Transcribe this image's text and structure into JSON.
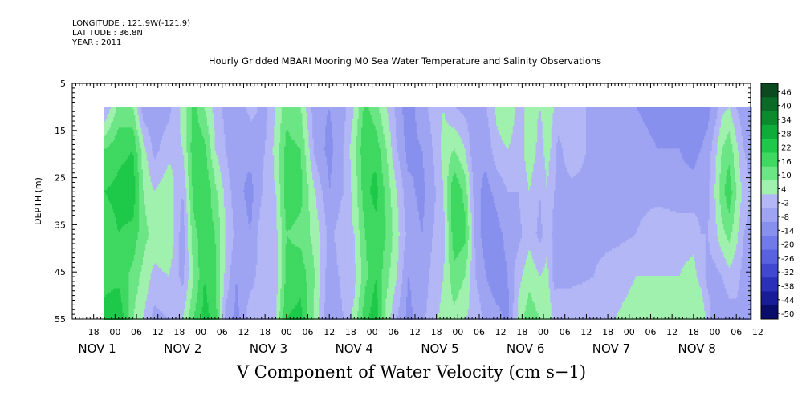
{
  "header": {
    "longitude": "LONGITUDE : 121.9W(-121.9)",
    "latitude": "LATITUDE : 36.8N",
    "year": "YEAR : 2011"
  },
  "chart_data": {
    "type": "heatmap",
    "title": "Hourly Gridded MBARI Mooring M0 Sea Water Temperature and Salinity Observations",
    "xlabel": "V Component of Water Velocity (cm s−1)",
    "ylabel": "DEPTH (m)",
    "y_reversed": true,
    "ylim": [
      5,
      55
    ],
    "yticks": [
      5,
      15,
      25,
      35,
      45,
      55
    ],
    "data_depth_range": [
      10,
      55
    ],
    "x_axis": {
      "hour_labels": [
        "18",
        "00",
        "06",
        "12",
        "18",
        "00",
        "06",
        "12",
        "18",
        "00",
        "06",
        "12",
        "18",
        "00",
        "06",
        "12",
        "18",
        "00",
        "06",
        "12",
        "18",
        "00",
        "06",
        "12",
        "18",
        "00",
        "06",
        "12",
        "18",
        "00",
        "06",
        "12"
      ],
      "day_labels": [
        "NOV 1",
        "NOV 2",
        "NOV 3",
        "NOV 4",
        "NOV 5",
        "NOV 6",
        "NOV 7",
        "NOV 8"
      ],
      "range_hours_from_oct31_12": [
        0,
        190
      ],
      "data_start_hours": 9
    },
    "colorbar": {
      "labels": [
        "46",
        "40",
        "34",
        "28",
        "22",
        "16",
        "10",
        "4",
        "-2",
        "-8",
        "-14",
        "-20",
        "-26",
        "-32",
        "-38",
        "-44",
        "-50"
      ],
      "colors": [
        "#0a4a1e",
        "#0b6a26",
        "#0c8a2e",
        "#10ac3a",
        "#1ec848",
        "#3fd860",
        "#6ce685",
        "#a0f0ae",
        "#b3b7f6",
        "#9ea4f2",
        "#8890ee",
        "#707ae8",
        "#5862de",
        "#4048cf",
        "#2a30b8",
        "#181c96",
        "#0a0c6a"
      ],
      "range": [
        -50,
        52
      ]
    },
    "day_columns": [
      {
        "hour": 9,
        "profile": [
          -3,
          16,
          22,
          18,
          20,
          24
        ]
      },
      {
        "hour": 13,
        "profile": [
          12,
          20,
          24,
          22,
          20,
          28
        ]
      },
      {
        "hour": 17,
        "profile": [
          10,
          22,
          26,
          20,
          14,
          10
        ]
      },
      {
        "hour": 20,
        "profile": [
          -6,
          6,
          10,
          12,
          8,
          4
        ]
      },
      {
        "hour": 23,
        "profile": [
          -8,
          -4,
          4,
          8,
          2,
          -4
        ]
      },
      {
        "hour": 27,
        "profile": [
          -4,
          2,
          8,
          10,
          4,
          -2
        ]
      },
      {
        "hour": 31,
        "profile": [
          6,
          4,
          -2,
          -6,
          -4,
          4
        ]
      },
      {
        "hour": 34,
        "profile": [
          18,
          20,
          18,
          14,
          10,
          16
        ]
      },
      {
        "hour": 37,
        "profile": [
          10,
          18,
          22,
          20,
          22,
          24
        ]
      },
      {
        "hour": 40,
        "profile": [
          2,
          4,
          12,
          16,
          18,
          20
        ]
      },
      {
        "hour": 43,
        "profile": [
          -4,
          -2,
          2,
          4,
          2,
          -4
        ]
      },
      {
        "hour": 46,
        "profile": [
          -6,
          -8,
          -6,
          -4,
          -8,
          -10
        ]
      },
      {
        "hour": 50,
        "profile": [
          0,
          -6,
          -10,
          -8,
          -4,
          2
        ]
      },
      {
        "hour": 54,
        "profile": [
          -4,
          -2,
          0,
          4,
          2,
          -2
        ]
      },
      {
        "hour": 57,
        "profile": [
          4,
          6,
          4,
          2,
          0,
          4
        ]
      },
      {
        "hour": 60,
        "profile": [
          14,
          18,
          20,
          16,
          18,
          22
        ]
      },
      {
        "hour": 64,
        "profile": [
          10,
          16,
          18,
          14,
          20,
          24
        ]
      },
      {
        "hour": 68,
        "profile": [
          -6,
          -4,
          4,
          8,
          10,
          8
        ]
      },
      {
        "hour": 72,
        "profile": [
          -8,
          -10,
          -8,
          -4,
          -6,
          -8
        ]
      },
      {
        "hour": 76,
        "profile": [
          -4,
          -2,
          -2,
          2,
          0,
          -2
        ]
      },
      {
        "hour": 79,
        "profile": [
          4,
          8,
          6,
          4,
          2,
          6
        ]
      },
      {
        "hour": 82,
        "profile": [
          18,
          22,
          20,
          16,
          14,
          20
        ]
      },
      {
        "hour": 85,
        "profile": [
          12,
          20,
          24,
          20,
          22,
          26
        ]
      },
      {
        "hour": 88,
        "profile": [
          4,
          10,
          14,
          16,
          12,
          8
        ]
      },
      {
        "hour": 91,
        "profile": [
          -4,
          -2,
          4,
          6,
          4,
          -2
        ]
      },
      {
        "hour": 94,
        "profile": [
          -12,
          -10,
          -6,
          -4,
          -8,
          -10
        ]
      },
      {
        "hour": 98,
        "profile": [
          -4,
          -8,
          -10,
          -8,
          -6,
          -4
        ]
      },
      {
        "hour": 101,
        "profile": [
          0,
          -2,
          -4,
          -2,
          0,
          2
        ]
      },
      {
        "hour": 104,
        "profile": [
          4,
          6,
          4,
          2,
          4,
          6
        ]
      },
      {
        "hour": 107,
        "profile": [
          -2,
          10,
          22,
          20,
          14,
          8
        ]
      },
      {
        "hour": 110,
        "profile": [
          -4,
          4,
          14,
          18,
          10,
          4
        ]
      },
      {
        "hour": 113,
        "profile": [
          -6,
          -8,
          -6,
          -4,
          -2,
          2
        ]
      },
      {
        "hour": 116,
        "profile": [
          -2,
          -6,
          -10,
          -12,
          -8,
          -4
        ]
      },
      {
        "hour": 119,
        "profile": [
          6,
          2,
          -6,
          -10,
          -12,
          -6
        ]
      },
      {
        "hour": 122,
        "profile": [
          10,
          4,
          -2,
          -6,
          -8,
          -10
        ]
      },
      {
        "hour": 125,
        "profile": [
          2,
          0,
          -2,
          -4,
          2,
          6
        ]
      },
      {
        "hour": 128,
        "profile": [
          6,
          8,
          4,
          2,
          8,
          14
        ]
      },
      {
        "hour": 131,
        "profile": [
          4,
          2,
          -2,
          -4,
          4,
          10
        ]
      },
      {
        "hour": 133,
        "profile": [
          6,
          6,
          4,
          2,
          6,
          10
        ]
      },
      {
        "hour": 135,
        "profile": [
          4,
          2,
          -2,
          -4,
          -4,
          2
        ]
      },
      {
        "hour": 136,
        "profile": [
          2,
          -4,
          -4,
          -4,
          -4,
          4
        ]
      },
      {
        "hour": 140,
        "profile": [
          2,
          2,
          -4,
          -4,
          -4,
          4
        ]
      },
      {
        "hour": 146,
        "profile": [
          -4,
          -4,
          -4,
          -4,
          -2,
          4
        ]
      },
      {
        "hour": 152,
        "profile": [
          -6,
          -6,
          -4,
          -4,
          2,
          4
        ]
      },
      {
        "hour": 158,
        "profile": [
          -8,
          -6,
          -4,
          -2,
          4,
          6
        ]
      },
      {
        "hour": 164,
        "profile": [
          -10,
          -8,
          -4,
          2,
          4,
          6
        ]
      },
      {
        "hour": 170,
        "profile": [
          -12,
          -8,
          -6,
          2,
          4,
          6
        ]
      },
      {
        "hour": 174,
        "profile": [
          -14,
          -10,
          -6,
          2,
          6,
          8
        ]
      },
      {
        "hour": 176,
        "profile": [
          -12,
          -8,
          -4,
          -2,
          2,
          10
        ]
      },
      {
        "hour": 178,
        "profile": [
          -10,
          -6,
          -4,
          -2,
          -4,
          2
        ]
      },
      {
        "hour": 180,
        "profile": [
          -6,
          2,
          4,
          2,
          -4,
          -6
        ]
      },
      {
        "hour": 182,
        "profile": [
          2,
          10,
          14,
          8,
          -2,
          -8
        ]
      },
      {
        "hour": 184,
        "profile": [
          4,
          14,
          20,
          12,
          2,
          -6
        ]
      },
      {
        "hour": 186,
        "profile": [
          -2,
          6,
          10,
          6,
          0,
          -4
        ]
      },
      {
        "hour": 188,
        "profile": [
          -6,
          -2,
          2,
          -2,
          -4,
          -4
        ]
      },
      {
        "hour": 190,
        "profile": [
          -8,
          -4,
          -2,
          -4,
          -6,
          -4
        ]
      }
    ],
    "profile_depths": [
      10,
      19,
      28,
      37,
      46,
      55
    ]
  }
}
